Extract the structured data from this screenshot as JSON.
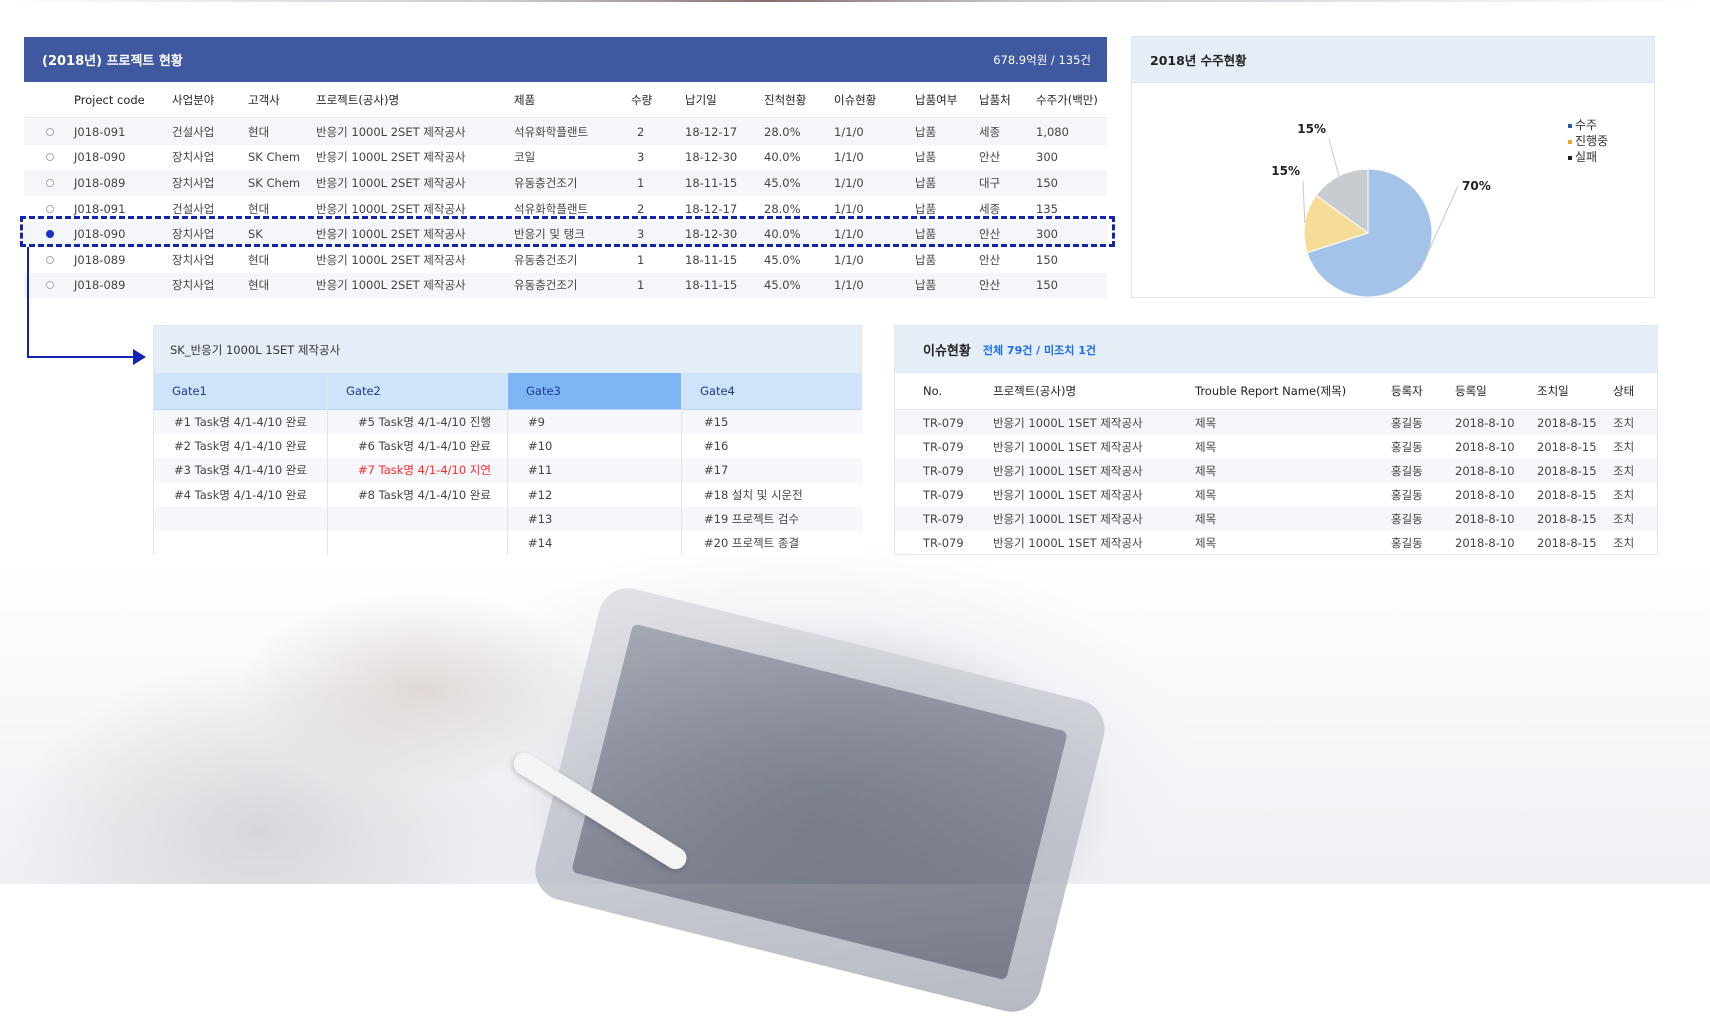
{
  "project_panel": {
    "title": "(2018년) 프로젝트 현황",
    "summary": "678.9억원 / 135건",
    "columns": [
      "",
      "Project code",
      "사업분야",
      "고객사",
      "프로젝트(공사)명",
      "제품",
      "수량",
      "납기일",
      "진척현황",
      "이슈현황",
      "납품여부",
      "납품처",
      "수주가(백만)"
    ],
    "selected_index": 4,
    "rows": [
      [
        "J018-091",
        "건설사업",
        "현대",
        "반응기 1000L 2SET 제작공사",
        "석유화학플랜트",
        "2",
        "18-12-17",
        "28.0%",
        "1/1/0",
        "납품",
        "세종",
        "1,080"
      ],
      [
        "J018-090",
        "장치사업",
        "SK Chem",
        "반응기 1000L 2SET 제작공사",
        "코일",
        "3",
        "18-12-30",
        "40.0%",
        "1/1/0",
        "납품",
        "안산",
        "300"
      ],
      [
        "J018-089",
        "장치사업",
        "SK Chem",
        "반응기 1000L 2SET 제작공사",
        "유동층건조기",
        "1",
        "18-11-15",
        "45.0%",
        "1/1/0",
        "납품",
        "대구",
        "150"
      ],
      [
        "J018-091",
        "건설사업",
        "현대",
        "반응기 1000L 2SET 제작공사",
        "석유화학플랜트",
        "2",
        "18-12-17",
        "28.0%",
        "1/1/0",
        "납품",
        "세종",
        "135"
      ],
      [
        "J018-090",
        "장치사업",
        "SK",
        "반응기 1000L 2SET 제작공사",
        "반응기 및 탱크",
        "3",
        "18-12-30",
        "40.0%",
        "1/1/0",
        "납품",
        "안산",
        "300"
      ],
      [
        "J018-089",
        "장치사업",
        "현대",
        "반응기 1000L 2SET 제작공사",
        "유동층건조기",
        "1",
        "18-11-15",
        "45.0%",
        "1/1/0",
        "납품",
        "안산",
        "150"
      ],
      [
        "J018-089",
        "장치사업",
        "현대",
        "반응기 1000L 2SET 제작공사",
        "유동층건조기",
        "1",
        "18-11-15",
        "45.0%",
        "1/1/0",
        "납품",
        "안산",
        "150"
      ]
    ]
  },
  "chart_data": {
    "type": "pie",
    "title": "2018년 수주현황",
    "legend_position": "top-right",
    "slices": [
      {
        "name": "수주",
        "value": 70,
        "label": "70%",
        "color": "#a3c4e8",
        "legend_color": "#2a5db0"
      },
      {
        "name": "진행중",
        "value": 15,
        "label": "15%",
        "color": "#f5dd97",
        "legend_color": "#f2a81d"
      },
      {
        "name": "실패",
        "value": 15,
        "label": "15%",
        "color": "#c8cbcf",
        "legend_color": "#222222"
      }
    ]
  },
  "gate_panel": {
    "title": "SK_반응기 1000L 1SET 제작공사",
    "active_gate": 2,
    "gates": [
      {
        "label": "Gate1",
        "items": [
          {
            "text": "#1 Task명 4/1-4/10 완료"
          },
          {
            "text": "#2 Task명 4/1-4/10 완료"
          },
          {
            "text": "#3 Task명 4/1-4/10 완료"
          },
          {
            "text": "#4 Task명 4/1-4/10 완료"
          },
          {
            "text": ""
          },
          {
            "text": ""
          }
        ]
      },
      {
        "label": "Gate2",
        "items": [
          {
            "text": "#5 Task명 4/1-4/10 진행"
          },
          {
            "text": "#6 Task명 4/1-4/10 완료"
          },
          {
            "text": "#7 Task명 4/1-4/10 지연",
            "delayed": true
          },
          {
            "text": "#8 Task명 4/1-4/10 완료"
          },
          {
            "text": ""
          },
          {
            "text": ""
          }
        ]
      },
      {
        "label": "Gate3",
        "items": [
          {
            "text": "#9"
          },
          {
            "text": "#10"
          },
          {
            "text": "#11"
          },
          {
            "text": "#12"
          },
          {
            "text": "#13"
          },
          {
            "text": "#14"
          }
        ]
      },
      {
        "label": "Gate4",
        "items": [
          {
            "text": "#15"
          },
          {
            "text": "#16"
          },
          {
            "text": "#17"
          },
          {
            "text": "#18  설치 및 시운전"
          },
          {
            "text": "#19  프로젝트 검수"
          },
          {
            "text": "#20  프로젝트 종결"
          }
        ]
      }
    ]
  },
  "issue_panel": {
    "title": "이슈현황",
    "summary": "전체 79건 /  미조치 1건",
    "columns": [
      "No.",
      "프로젝트(공사)명",
      "Trouble Report Name(제목)",
      "등록자",
      "등록일",
      "조치일",
      "상태"
    ],
    "rows": [
      [
        "TR-079",
        "반응기 1000L 1SET 제작공사",
        "제목",
        "홍길동",
        "2018-8-10",
        "2018-8-15",
        "조치"
      ],
      [
        "TR-079",
        "반응기 1000L 1SET 제작공사",
        "제목",
        "홍길동",
        "2018-8-10",
        "2018-8-15",
        "조치"
      ],
      [
        "TR-079",
        "반응기 1000L 1SET 제작공사",
        "제목",
        "홍길동",
        "2018-8-10",
        "2018-8-15",
        "조치"
      ],
      [
        "TR-079",
        "반응기 1000L 1SET 제작공사",
        "제목",
        "홍길동",
        "2018-8-10",
        "2018-8-15",
        "조치"
      ],
      [
        "TR-079",
        "반응기 1000L 1SET 제작공사",
        "제목",
        "홍길동",
        "2018-8-10",
        "2018-8-15",
        "조치"
      ],
      [
        "TR-079",
        "반응기 1000L 1SET 제작공사",
        "제목",
        "홍길동",
        "2018-8-10",
        "2018-8-15",
        "조치"
      ]
    ]
  },
  "colors": {
    "header_blue": "#3f58a0",
    "panel_header": "#e5edf7",
    "gate_header": "#cfe4fb",
    "gate_active": "#7eb6f5",
    "highlight": "#1224b0",
    "delayed": "#ff2a2a",
    "summary_blue": "#1a6cf0"
  }
}
